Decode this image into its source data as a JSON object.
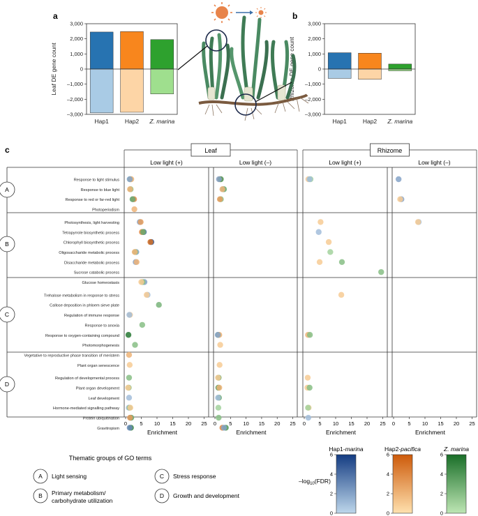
{
  "chart_data": [
    {
      "panel": "a",
      "type": "bar",
      "ylabel": "Leaf DE gene count",
      "categories": [
        "Hap1",
        "Hap2",
        "Z. marina"
      ],
      "series": [
        {
          "name": "up",
          "values": [
            2450,
            2480,
            1950
          ]
        },
        {
          "name": "down",
          "values": [
            -2900,
            -2860,
            -1650
          ]
        }
      ],
      "ylim": [
        -3000,
        3000
      ],
      "yticks": [
        "3,000",
        "2,000",
        "1,000",
        "0",
        "–1,000",
        "–2,000",
        "–3,000"
      ],
      "ytick_values": [
        3000,
        2000,
        1000,
        0,
        -1000,
        -2000,
        -3000
      ]
    },
    {
      "panel": "b",
      "type": "bar",
      "ylabel": "Rhizome DE gene count",
      "categories": [
        "Hap1",
        "Hap2",
        "Z. marina"
      ],
      "series": [
        {
          "name": "up",
          "values": [
            1080,
            1050,
            330
          ]
        },
        {
          "name": "down",
          "values": [
            -620,
            -680,
            -120
          ]
        }
      ],
      "ylim": [
        -3000,
        3000
      ],
      "yticks": [
        "3,000",
        "2,000",
        "1,000",
        "0",
        "–1,000",
        "–2,000",
        "–3,000"
      ],
      "ytick_values": [
        3000,
        2000,
        1000,
        0,
        -1000,
        -2000,
        -3000
      ]
    },
    {
      "panel": "c",
      "type": "scatter",
      "tissues": [
        "Leaf",
        "Rhizome"
      ],
      "conditions": [
        "Low light (+)",
        "Low light (–)"
      ],
      "xlabel": "Enrichment",
      "xticks": [
        0,
        5,
        10,
        15,
        20,
        25
      ],
      "xlim": [
        0,
        26
      ],
      "groups": [
        "A",
        "B",
        "C",
        "D"
      ],
      "terms": [
        "Response to light stimulus",
        "Response to blue light",
        "Response to red or far-red light",
        "Photoperiodism",
        "Photosynthesis, light harvesting",
        "Tetrapyrrole biosynthetic process",
        "Chlorophyll biosynthetic process",
        "Oligosaccharide metabolic process",
        "Disaccharide metabolic process",
        "Sucrose catabolic process",
        "Glucose homeostasis",
        "Trehalose metabolism in response to stress",
        "Callose deposition in phloem sieve plate",
        "Regulation of immune response",
        "Response to anoxia",
        "Response to oxygen-containing compound",
        "Photomorphogenesis",
        "Vegetative to reproductive phase transition of meristem",
        "Plant organ senescence",
        "Regulation of developmental process",
        "Plant organ development",
        "Leaf development",
        "Hormone-mediated signalling pathway",
        "Protein ubiquitination",
        "Gravitropism"
      ],
      "group_of_term": [
        "A",
        "A",
        "A",
        "A",
        "B",
        "B",
        "B",
        "B",
        "B",
        "B",
        "B",
        "C",
        "C",
        "C",
        "C",
        "C",
        "C",
        "C",
        "C",
        "D",
        "D",
        "D",
        "D",
        "D",
        "D"
      ],
      "points": [
        {
          "term": 0,
          "panel": 0,
          "x": 1.5,
          "s": "g",
          "v": 2.5
        },
        {
          "term": 0,
          "panel": 0,
          "x": 1.8,
          "s": "h2",
          "v": 2
        },
        {
          "term": 0,
          "panel": 0,
          "x": 1.3,
          "s": "h1",
          "v": 2
        },
        {
          "term": 1,
          "panel": 0,
          "x": 1.6,
          "s": "g",
          "v": 2
        },
        {
          "term": 1,
          "panel": 0,
          "x": 1.4,
          "s": "h2",
          "v": 2
        },
        {
          "term": 2,
          "panel": 0,
          "x": 2.4,
          "s": "h1",
          "v": 3
        },
        {
          "term": 2,
          "panel": 0,
          "x": 2.7,
          "s": "h2",
          "v": 3.5
        },
        {
          "term": 2,
          "panel": 0,
          "x": 2.2,
          "s": "g",
          "v": 3
        },
        {
          "term": 3,
          "panel": 0,
          "x": 2.8,
          "s": "h2",
          "v": 2
        },
        {
          "term": 4,
          "panel": 0,
          "x": 4.5,
          "s": "h1",
          "v": 2
        },
        {
          "term": 4,
          "panel": 0,
          "x": 4.8,
          "s": "h2",
          "v": 3
        },
        {
          "term": 5,
          "panel": 0,
          "x": 5.8,
          "s": "h1",
          "v": 4
        },
        {
          "term": 5,
          "panel": 0,
          "x": 5.2,
          "s": "h2",
          "v": 4
        },
        {
          "term": 5,
          "panel": 0,
          "x": 5.6,
          "s": "g",
          "v": 3
        },
        {
          "term": 6,
          "panel": 0,
          "x": 8.2,
          "s": "h1",
          "v": 5
        },
        {
          "term": 6,
          "panel": 0,
          "x": 7.9,
          "s": "h2",
          "v": 5
        },
        {
          "term": 7,
          "panel": 0,
          "x": 3.4,
          "s": "h1",
          "v": 2
        },
        {
          "term": 7,
          "panel": 0,
          "x": 3.1,
          "s": "g",
          "v": 2
        },
        {
          "term": 7,
          "panel": 0,
          "x": 2.9,
          "s": "h2",
          "v": 2
        },
        {
          "term": 8,
          "panel": 0,
          "x": 3.2,
          "s": "h1",
          "v": 2
        },
        {
          "term": 8,
          "panel": 0,
          "x": 3.5,
          "s": "h2",
          "v": 2
        },
        {
          "term": 10,
          "panel": 0,
          "x": 6.0,
          "s": "h1",
          "v": 2
        },
        {
          "term": 10,
          "panel": 0,
          "x": 5.4,
          "s": "g",
          "v": 2
        },
        {
          "term": 10,
          "panel": 0,
          "x": 5.0,
          "s": "h2",
          "v": 1
        },
        {
          "term": 11,
          "panel": 0,
          "x": 7.0,
          "s": "h1",
          "v": 1
        },
        {
          "term": 11,
          "panel": 0,
          "x": 6.7,
          "s": "h2",
          "v": 1
        },
        {
          "term": 12,
          "panel": 0,
          "x": 10.6,
          "s": "g",
          "v": 2.5
        },
        {
          "term": 13,
          "panel": 0,
          "x": 1.4,
          "s": "h2",
          "v": 1
        },
        {
          "term": 13,
          "panel": 0,
          "x": 1.2,
          "s": "h1",
          "v": 1
        },
        {
          "term": 14,
          "panel": 0,
          "x": 5.3,
          "s": "g",
          "v": 2
        },
        {
          "term": 15,
          "panel": 0,
          "x": 0.9,
          "s": "g",
          "v": 5.5
        },
        {
          "term": 16,
          "panel": 0,
          "x": 3.0,
          "s": "g",
          "v": 2
        },
        {
          "term": 17,
          "panel": 0,
          "x": 1.1,
          "s": "h2",
          "v": 2
        },
        {
          "term": 18,
          "panel": 0,
          "x": 1.3,
          "s": "h2",
          "v": 1
        },
        {
          "term": 19,
          "panel": 0,
          "x": 1.1,
          "s": "g",
          "v": 2
        },
        {
          "term": 20,
          "panel": 0,
          "x": 1.0,
          "s": "g",
          "v": 2
        },
        {
          "term": 20,
          "panel": 0,
          "x": 0.8,
          "s": "h2",
          "v": 1
        },
        {
          "term": 21,
          "panel": 0,
          "x": 1.1,
          "s": "h1",
          "v": 1
        },
        {
          "term": 22,
          "panel": 0,
          "x": 1.0,
          "s": "h1",
          "v": 1
        },
        {
          "term": 22,
          "panel": 0,
          "x": 1.3,
          "s": "g",
          "v": 2
        },
        {
          "term": 22,
          "panel": 0,
          "x": 1.5,
          "s": "h2",
          "v": 1
        },
        {
          "term": 23,
          "panel": 0,
          "x": 1.6,
          "s": "h1",
          "v": 4
        },
        {
          "term": 23,
          "panel": 0,
          "x": 1.8,
          "s": "g",
          "v": 3
        },
        {
          "term": 23,
          "panel": 0,
          "x": 1.4,
          "s": "h2",
          "v": 3
        },
        {
          "term": 24,
          "panel": 0,
          "x": 1.7,
          "s": "g",
          "v": 5
        },
        {
          "term": 24,
          "panel": 0,
          "x": 1.3,
          "s": "h1",
          "v": 3
        },
        {
          "term": 0,
          "panel": 1,
          "x": 1.6,
          "s": "h2",
          "v": 4
        },
        {
          "term": 0,
          "panel": 1,
          "x": 1.9,
          "s": "g",
          "v": 4
        },
        {
          "term": 0,
          "panel": 1,
          "x": 1.3,
          "s": "h1",
          "v": 2
        },
        {
          "term": 1,
          "panel": 1,
          "x": 2.6,
          "s": "h1",
          "v": 2
        },
        {
          "term": 1,
          "panel": 1,
          "x": 2.9,
          "s": "g",
          "v": 3
        },
        {
          "term": 1,
          "panel": 1,
          "x": 2.4,
          "s": "h2",
          "v": 2
        },
        {
          "term": 2,
          "panel": 1,
          "x": 1.9,
          "s": "g",
          "v": 2
        },
        {
          "term": 2,
          "panel": 1,
          "x": 1.6,
          "s": "h2",
          "v": 3
        },
        {
          "term": 15,
          "panel": 1,
          "x": 1.1,
          "s": "g",
          "v": 3
        },
        {
          "term": 15,
          "panel": 1,
          "x": 1.4,
          "s": "h2",
          "v": 2
        },
        {
          "term": 15,
          "panel": 1,
          "x": 0.9,
          "s": "h1",
          "v": 2
        },
        {
          "term": 16,
          "panel": 1,
          "x": 1.7,
          "s": "h2",
          "v": 1
        },
        {
          "term": 18,
          "panel": 1,
          "x": 1.5,
          "s": "h2",
          "v": 1
        },
        {
          "term": 19,
          "panel": 1,
          "x": 1.2,
          "s": "g",
          "v": 3
        },
        {
          "term": 19,
          "panel": 1,
          "x": 1.0,
          "s": "h2",
          "v": 1
        },
        {
          "term": 20,
          "panel": 1,
          "x": 1.1,
          "s": "g",
          "v": 4
        },
        {
          "term": 20,
          "panel": 1,
          "x": 1.4,
          "s": "h2",
          "v": 2
        },
        {
          "term": 21,
          "panel": 1,
          "x": 1.3,
          "s": "g",
          "v": 3
        },
        {
          "term": 21,
          "panel": 1,
          "x": 1.0,
          "s": "h1",
          "v": 1
        },
        {
          "term": 22,
          "panel": 1,
          "x": 1.1,
          "s": "g",
          "v": 1
        },
        {
          "term": 23,
          "panel": 1,
          "x": 1.2,
          "s": "g",
          "v": 2
        },
        {
          "term": 24,
          "panel": 1,
          "x": 2.4,
          "s": "h2",
          "v": 4
        },
        {
          "term": 24,
          "panel": 1,
          "x": 3.5,
          "s": "g",
          "v": 4
        },
        {
          "term": 24,
          "panel": 1,
          "x": 2.9,
          "s": "h1",
          "v": 2
        },
        {
          "term": 0,
          "panel": 2,
          "x": 1.3,
          "s": "h2",
          "v": 1
        },
        {
          "term": 0,
          "panel": 2,
          "x": 2.0,
          "s": "g",
          "v": 1
        },
        {
          "term": 0,
          "panel": 2,
          "x": 1.7,
          "s": "h1",
          "v": 1
        },
        {
          "term": 4,
          "panel": 2,
          "x": 5.2,
          "s": "h2",
          "v": 1
        },
        {
          "term": 5,
          "panel": 2,
          "x": 4.6,
          "s": "h1",
          "v": 1
        },
        {
          "term": 6,
          "panel": 2,
          "x": 7.8,
          "s": "h2",
          "v": 1
        },
        {
          "term": 7,
          "panel": 2,
          "x": 8.3,
          "s": "g",
          "v": 1
        },
        {
          "term": 8,
          "panel": 2,
          "x": 4.9,
          "s": "h2",
          "v": 1
        },
        {
          "term": 8,
          "panel": 2,
          "x": 12.0,
          "s": "g",
          "v": 2
        },
        {
          "term": 9,
          "panel": 2,
          "x": 24.5,
          "s": "g",
          "v": 2
        },
        {
          "term": 11,
          "panel": 2,
          "x": 11.8,
          "s": "h2",
          "v": 1
        },
        {
          "term": 15,
          "panel": 2,
          "x": 1.2,
          "s": "h2",
          "v": 2
        },
        {
          "term": 15,
          "panel": 2,
          "x": 1.8,
          "s": "g",
          "v": 2
        },
        {
          "term": 19,
          "panel": 2,
          "x": 1.1,
          "s": "h2",
          "v": 1
        },
        {
          "term": 20,
          "panel": 2,
          "x": 1.0,
          "s": "h2",
          "v": 1
        },
        {
          "term": 20,
          "panel": 2,
          "x": 1.7,
          "s": "g",
          "v": 2
        },
        {
          "term": 22,
          "panel": 2,
          "x": 1.4,
          "s": "h2",
          "v": 1
        },
        {
          "term": 22,
          "panel": 2,
          "x": 1.2,
          "s": "g",
          "v": 1
        },
        {
          "term": 23,
          "panel": 2,
          "x": 1.3,
          "s": "h1",
          "v": 1
        },
        {
          "term": 0,
          "panel": 3,
          "x": 1.6,
          "s": "h1",
          "v": 2
        },
        {
          "term": 2,
          "panel": 3,
          "x": 2.5,
          "s": "h1",
          "v": 2
        },
        {
          "term": 2,
          "panel": 3,
          "x": 2.1,
          "s": "h2",
          "v": 1
        },
        {
          "term": 4,
          "panel": 3,
          "x": 8.0,
          "s": "h1",
          "v": 1
        },
        {
          "term": 4,
          "panel": 3,
          "x": 7.8,
          "s": "h2",
          "v": 1
        }
      ],
      "legend": {
        "title": "Thematic groups of GO terms",
        "items": [
          {
            "key": "A",
            "label": "Light sensing"
          },
          {
            "key": "B",
            "label": "Primary metabolism/",
            "label2": "carbohydrate utilization"
          },
          {
            "key": "C",
            "label": "Stress response"
          },
          {
            "key": "D",
            "label": "Growth and development"
          }
        ]
      },
      "colorbars": [
        {
          "name": "Hap1-",
          "name_it": "marina",
          "id": "h1",
          "min": 0,
          "max": 6,
          "ticks": [
            "6",
            "4",
            "2",
            "0"
          ],
          "color": "#1a4b8c"
        },
        {
          "name": "Hap2-",
          "name_it": "pacifica",
          "id": "h2",
          "min": 0,
          "max": 6,
          "ticks": [
            "6",
            "4",
            "2",
            "0"
          ],
          "color": "#d96a12"
        },
        {
          "name": "",
          "name_it": "Z. marina",
          "id": "g",
          "min": 0,
          "max": 6,
          "ticks": [
            "6",
            "4",
            "2",
            "0"
          ],
          "color": "#1f7a2c"
        }
      ],
      "colorbar_label": "–log",
      "colorbar_label_sub": "10",
      "colorbar_label_tail": "(FDR)"
    }
  ],
  "panel_labels": {
    "a": "a",
    "b": "b",
    "c": "c"
  },
  "colors": {
    "h1_up": "#2773b1",
    "h1_dn": "#a9cbe5",
    "h2_up": "#f8861d",
    "h2_dn": "#fdd5a6",
    "g_up": "#2ea12e",
    "g_dn": "#9fdf8e"
  }
}
